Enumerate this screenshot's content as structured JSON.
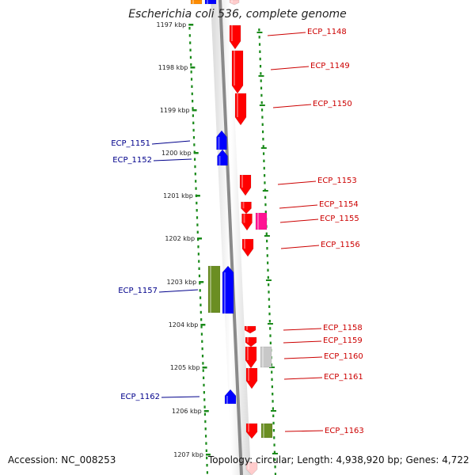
{
  "title": "Escherichia coli 536, complete genome",
  "footer": {
    "accession": "Accession: NC_008253",
    "summary": "Topology: circular; Length: 4,938,920 bp; Genes: 4,722"
  },
  "ruler": [
    {
      "label": "1197 kbp",
      "kbp": 1197
    },
    {
      "label": "1198 kbp",
      "kbp": 1198
    },
    {
      "label": "1199 kbp",
      "kbp": 1199
    },
    {
      "label": "1200 kbp",
      "kbp": 1200
    },
    {
      "label": "1201 kbp",
      "kbp": 1201
    },
    {
      "label": "1202 kbp",
      "kbp": 1202
    },
    {
      "label": "1203 kbp",
      "kbp": 1203
    },
    {
      "label": "1204 kbp",
      "kbp": 1204
    },
    {
      "label": "1205 kbp",
      "kbp": 1205
    },
    {
      "label": "1206 kbp",
      "kbp": 1206
    },
    {
      "label": "1207 kbp",
      "kbp": 1207
    }
  ],
  "genes": [
    {
      "label": "ECP_1148",
      "strand": "reverse",
      "color": "#ff0000"
    },
    {
      "label": "ECP_1149",
      "strand": "reverse",
      "color": "#ff0000"
    },
    {
      "label": "ECP_1150",
      "strand": "reverse",
      "color": "#ff0000"
    },
    {
      "label": "ECP_1151",
      "strand": "forward",
      "color": "#0000ff"
    },
    {
      "label": "ECP_1152",
      "strand": "forward",
      "color": "#0000ff"
    },
    {
      "label": "ECP_1153",
      "strand": "reverse",
      "color": "#ff0000"
    },
    {
      "label": "ECP_1154",
      "strand": "reverse",
      "color": "#ff0000"
    },
    {
      "label": "ECP_1155",
      "strand": "reverse",
      "color": "#ff0000"
    },
    {
      "label": "ECP_1156",
      "strand": "reverse",
      "color": "#ff0000"
    },
    {
      "label": "ECP_1157",
      "strand": "forward",
      "color": "#0000ff"
    },
    {
      "label": "ECP_1158",
      "strand": "reverse",
      "color": "#ff0000"
    },
    {
      "label": "ECP_1159",
      "strand": "reverse",
      "color": "#ff0000"
    },
    {
      "label": "ECP_1160",
      "strand": "reverse",
      "color": "#ff0000"
    },
    {
      "label": "ECP_1161",
      "strand": "reverse",
      "color": "#ff0000"
    },
    {
      "label": "ECP_1162",
      "strand": "forward",
      "color": "#0000ff"
    },
    {
      "label": "ECP_1163",
      "strand": "reverse",
      "color": "#ff0000"
    }
  ],
  "colors": {
    "forward_label": "#00008b",
    "reverse_label": "#cc0000",
    "tick": "#1a8a1a",
    "backbone": "#8a8a8a",
    "olive": "#6b8e23",
    "magenta": "#ff1493",
    "grey": "#c8c8c8",
    "orange": "#ff8c00"
  }
}
